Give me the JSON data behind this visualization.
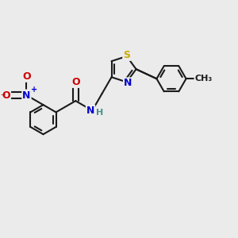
{
  "background_color": "#ebebeb",
  "figsize": [
    3.0,
    3.0
  ],
  "dpi": 100,
  "atom_colors": {
    "C": "#1a1a1a",
    "N": "#0000cc",
    "O": "#cc0000",
    "S": "#ccaa00",
    "H": "#4a9090"
  },
  "bond_color": "#1a1a1a",
  "bond_width": 1.5,
  "font_size": 9,
  "font_size_small": 8,
  "font_size_me": 8
}
